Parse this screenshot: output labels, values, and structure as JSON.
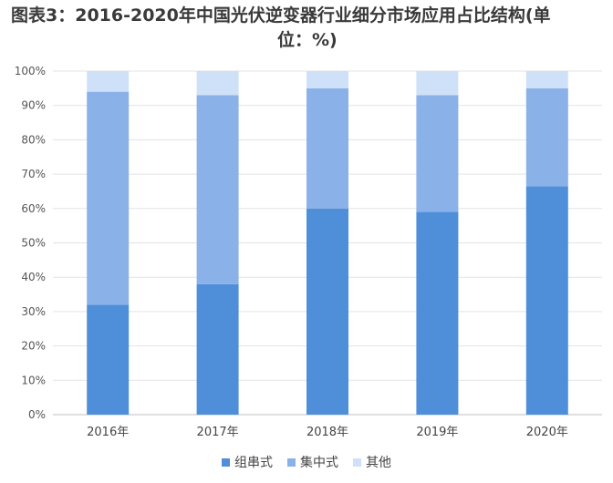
{
  "title_line1": "图表3：2016-2020年中国光伏逆变器行业细分市场应用占比结构(单",
  "title_line2": "位：%)",
  "chart_data": {
    "type": "bar",
    "stacked": true,
    "categories": [
      "2016年",
      "2017年",
      "2018年",
      "2019年",
      "2020年"
    ],
    "series": [
      {
        "name": "组串式",
        "values": [
          32,
          38,
          60,
          59,
          66.5
        ],
        "color": "#4f8fda"
      },
      {
        "name": "集中式",
        "values": [
          62,
          55,
          35,
          34,
          28.5
        ],
        "color": "#8ab2e8"
      },
      {
        "name": "其他",
        "values": [
          6,
          7,
          5,
          7,
          5
        ],
        "color": "#cfe1f8"
      }
    ],
    "ylim": [
      0,
      100
    ],
    "yticks": [
      "0%",
      "10%",
      "20%",
      "30%",
      "40%",
      "50%",
      "60%",
      "70%",
      "80%",
      "90%",
      "100%"
    ],
    "grid": true,
    "legend_position": "bottom"
  }
}
